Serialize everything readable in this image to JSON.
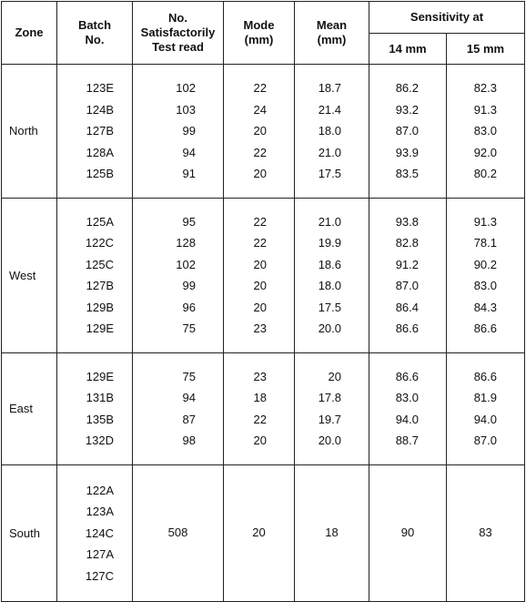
{
  "table": {
    "headers": {
      "zone": "Zone",
      "batch": "Batch No.",
      "count": "No. Satisfactorily Test read",
      "mode": "Mode (mm)",
      "mean": "Mean (mm)",
      "sensitivity": "Sensitivity at",
      "s14": "14 mm",
      "s15": "15 mm"
    },
    "groups": [
      {
        "zone": "North",
        "rows": [
          [
            "123E",
            "102",
            "22",
            "18.7",
            "86.2",
            "82.3"
          ],
          [
            "124B",
            "103",
            "24",
            "21.4",
            "93.2",
            "91.3"
          ],
          [
            "127B",
            "99",
            "20",
            "18.0",
            "87.0",
            "83.0"
          ],
          [
            "128A",
            "94",
            "22",
            "21.0",
            "93.9",
            "92.0"
          ],
          [
            "125B",
            "91",
            "20",
            "17.5",
            "83.5",
            "80.2"
          ]
        ]
      },
      {
        "zone": "West",
        "rows": [
          [
            "125A",
            "95",
            "22",
            "21.0",
            "93.8",
            "91.3"
          ],
          [
            "122C",
            "128",
            "22",
            "19.9",
            "82.8",
            "78.1"
          ],
          [
            "125C",
            "102",
            "20",
            "18.6",
            "91.2",
            "90.2"
          ],
          [
            "127B",
            "99",
            "20",
            "18.0",
            "87.0",
            "83.0"
          ],
          [
            "129B",
            "96",
            "20",
            "17.5",
            "86.4",
            "84.3"
          ],
          [
            "129E",
            "75",
            "23",
            "20.0",
            "86.6",
            "86.6"
          ]
        ]
      },
      {
        "zone": "East",
        "rows": [
          [
            "129E",
            "75",
            "23",
            "20",
            "86.6",
            "86.6"
          ],
          [
            "131B",
            "94",
            "18",
            "17.8",
            "83.0",
            "81.9"
          ],
          [
            "135B",
            "87",
            "22",
            "19.7",
            "94.0",
            "94.0"
          ],
          [
            "132D",
            "98",
            "20",
            "20.0",
            "88.7",
            "87.0"
          ]
        ]
      },
      {
        "zone": "South",
        "batches": [
          "122A",
          "123A",
          "124C",
          "127A",
          "127C"
        ],
        "values": [
          "508",
          "20",
          "18",
          "90",
          "83"
        ]
      }
    ]
  }
}
